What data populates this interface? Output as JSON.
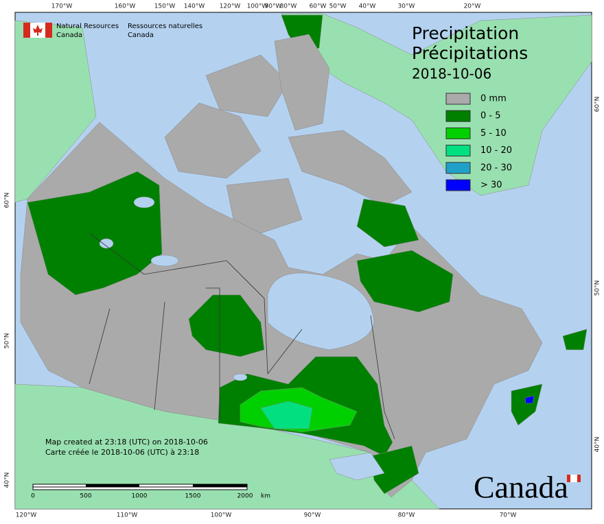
{
  "header": {
    "agency_en": [
      "Natural Resources",
      "Canada"
    ],
    "agency_fr": [
      "Ressources naturelles",
      "Canada"
    ]
  },
  "title": {
    "en": "Precipitation",
    "fr": "Précipitations",
    "date": "2018-10-06"
  },
  "legend": [
    {
      "label": "0 mm",
      "color": "#aaaaaa"
    },
    {
      "label": "0 - 5",
      "color": "#008000"
    },
    {
      "label": "5 - 10",
      "color": "#00d000"
    },
    {
      "label": "10 - 20",
      "color": "#00e080"
    },
    {
      "label": "20 - 30",
      "color": "#20a0c8"
    },
    {
      "label": "> 30",
      "color": "#0000ff"
    }
  ],
  "footer": {
    "created_en": "Map created at 23:18 (UTC) on 2018-10-06",
    "created_fr": "Carte créée le 2018-10-06 (UTC) à 23:18"
  },
  "scale_bar": {
    "labels": [
      "0",
      "500",
      "1000",
      "1500",
      "2000"
    ],
    "unit": "km"
  },
  "graticule": {
    "top": [
      "170°W",
      "160°W",
      "150°W",
      "140°W",
      "120°W",
      "100°W",
      "90°W",
      "80°W",
      "60°W",
      "50°W",
      "40°W",
      "30°W",
      "20°W"
    ],
    "bottom": [
      "120°W",
      "110°W",
      "100°W",
      "90°W",
      "80°W",
      "70°W"
    ],
    "left": [
      "60°N",
      "50°N",
      "40°N"
    ],
    "right": [
      "60°N",
      "50°N",
      "40°N"
    ]
  },
  "wordmark": "Canada"
}
